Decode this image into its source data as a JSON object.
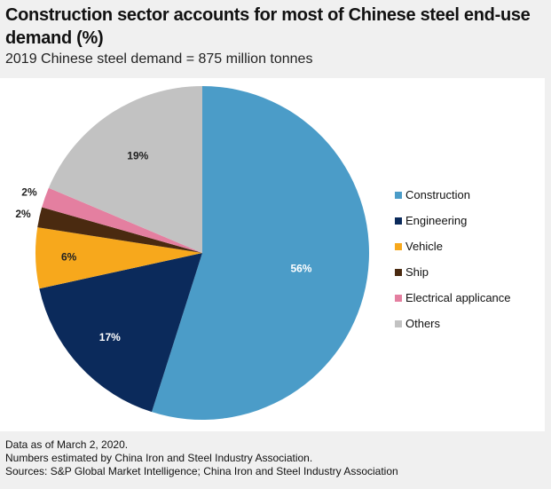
{
  "title": "Construction sector accounts for most of Chinese steel end-use demand (%)",
  "subtitle": "2019 Chinese steel demand = 875 million tonnes",
  "chart_data": {
    "type": "pie",
    "title": "Construction sector accounts for most of Chinese steel end-use demand (%)",
    "legend_position": "right",
    "slices": [
      {
        "label": "Construction",
        "value": 56,
        "text": "56%",
        "color": "#4b9cc8"
      },
      {
        "label": "Engineering",
        "value": 17,
        "text": "17%",
        "color": "#0b2a5b"
      },
      {
        "label": "Vehicle",
        "value": 6,
        "text": "6%",
        "color": "#f7a81c"
      },
      {
        "label": "Ship",
        "value": 2,
        "text": "2%",
        "color": "#4a2a10"
      },
      {
        "label": "Electrical applicance",
        "value": 2,
        "text": "2%",
        "color": "#e47fa0"
      },
      {
        "label": "Others",
        "value": 19,
        "text": "19%",
        "color": "#c2c2c2"
      }
    ]
  },
  "notes": [
    "Data as of March 2, 2020.",
    "Numbers estimated by China Iron and Steel Industry Association.",
    "Sources: S&P Global Market Intelligence; China Iron and Steel Industry Association"
  ]
}
